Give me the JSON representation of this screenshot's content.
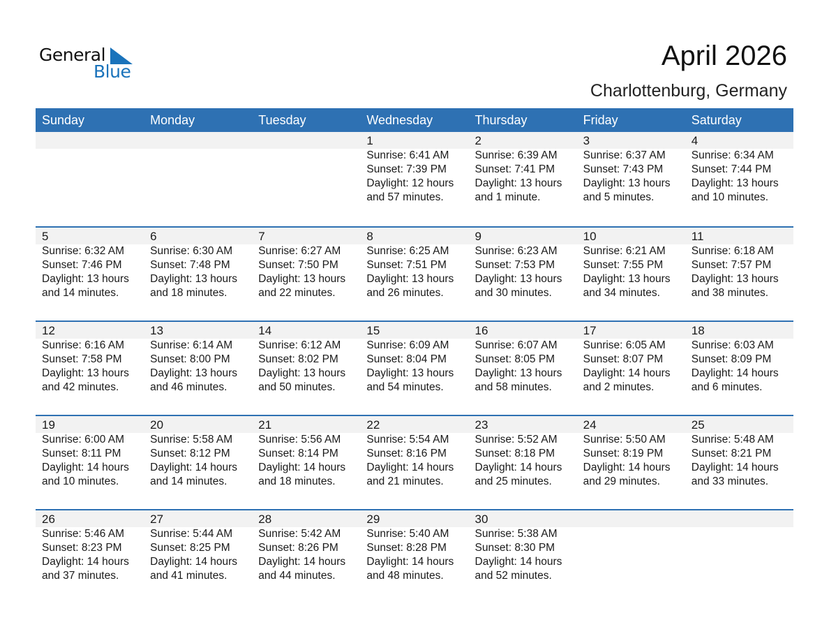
{
  "logo": {
    "text_general": "General",
    "text_blue": "Blue"
  },
  "title": "April 2026",
  "location": "Charlottenburg, Germany",
  "days": [
    "Sunday",
    "Monday",
    "Tuesday",
    "Wednesday",
    "Thursday",
    "Friday",
    "Saturday"
  ],
  "weeks": [
    [
      null,
      null,
      null,
      {
        "day": "1",
        "sunrise": "Sunrise: 6:41 AM",
        "sunset": "Sunset: 7:39 PM",
        "daylight1": "Daylight: 12 hours",
        "daylight2": "and 57 minutes."
      },
      {
        "day": "2",
        "sunrise": "Sunrise: 6:39 AM",
        "sunset": "Sunset: 7:41 PM",
        "daylight1": "Daylight: 13 hours",
        "daylight2": "and 1 minute."
      },
      {
        "day": "3",
        "sunrise": "Sunrise: 6:37 AM",
        "sunset": "Sunset: 7:43 PM",
        "daylight1": "Daylight: 13 hours",
        "daylight2": "and 5 minutes."
      },
      {
        "day": "4",
        "sunrise": "Sunrise: 6:34 AM",
        "sunset": "Sunset: 7:44 PM",
        "daylight1": "Daylight: 13 hours",
        "daylight2": "and 10 minutes."
      }
    ],
    [
      {
        "day": "5",
        "sunrise": "Sunrise: 6:32 AM",
        "sunset": "Sunset: 7:46 PM",
        "daylight1": "Daylight: 13 hours",
        "daylight2": "and 14 minutes."
      },
      {
        "day": "6",
        "sunrise": "Sunrise: 6:30 AM",
        "sunset": "Sunset: 7:48 PM",
        "daylight1": "Daylight: 13 hours",
        "daylight2": "and 18 minutes."
      },
      {
        "day": "7",
        "sunrise": "Sunrise: 6:27 AM",
        "sunset": "Sunset: 7:50 PM",
        "daylight1": "Daylight: 13 hours",
        "daylight2": "and 22 minutes."
      },
      {
        "day": "8",
        "sunrise": "Sunrise: 6:25 AM",
        "sunset": "Sunset: 7:51 PM",
        "daylight1": "Daylight: 13 hours",
        "daylight2": "and 26 minutes."
      },
      {
        "day": "9",
        "sunrise": "Sunrise: 6:23 AM",
        "sunset": "Sunset: 7:53 PM",
        "daylight1": "Daylight: 13 hours",
        "daylight2": "and 30 minutes."
      },
      {
        "day": "10",
        "sunrise": "Sunrise: 6:21 AM",
        "sunset": "Sunset: 7:55 PM",
        "daylight1": "Daylight: 13 hours",
        "daylight2": "and 34 minutes."
      },
      {
        "day": "11",
        "sunrise": "Sunrise: 6:18 AM",
        "sunset": "Sunset: 7:57 PM",
        "daylight1": "Daylight: 13 hours",
        "daylight2": "and 38 minutes."
      }
    ],
    [
      {
        "day": "12",
        "sunrise": "Sunrise: 6:16 AM",
        "sunset": "Sunset: 7:58 PM",
        "daylight1": "Daylight: 13 hours",
        "daylight2": "and 42 minutes."
      },
      {
        "day": "13",
        "sunrise": "Sunrise: 6:14 AM",
        "sunset": "Sunset: 8:00 PM",
        "daylight1": "Daylight: 13 hours",
        "daylight2": "and 46 minutes."
      },
      {
        "day": "14",
        "sunrise": "Sunrise: 6:12 AM",
        "sunset": "Sunset: 8:02 PM",
        "daylight1": "Daylight: 13 hours",
        "daylight2": "and 50 minutes."
      },
      {
        "day": "15",
        "sunrise": "Sunrise: 6:09 AM",
        "sunset": "Sunset: 8:04 PM",
        "daylight1": "Daylight: 13 hours",
        "daylight2": "and 54 minutes."
      },
      {
        "day": "16",
        "sunrise": "Sunrise: 6:07 AM",
        "sunset": "Sunset: 8:05 PM",
        "daylight1": "Daylight: 13 hours",
        "daylight2": "and 58 minutes."
      },
      {
        "day": "17",
        "sunrise": "Sunrise: 6:05 AM",
        "sunset": "Sunset: 8:07 PM",
        "daylight1": "Daylight: 14 hours",
        "daylight2": "and 2 minutes."
      },
      {
        "day": "18",
        "sunrise": "Sunrise: 6:03 AM",
        "sunset": "Sunset: 8:09 PM",
        "daylight1": "Daylight: 14 hours",
        "daylight2": "and 6 minutes."
      }
    ],
    [
      {
        "day": "19",
        "sunrise": "Sunrise: 6:00 AM",
        "sunset": "Sunset: 8:11 PM",
        "daylight1": "Daylight: 14 hours",
        "daylight2": "and 10 minutes."
      },
      {
        "day": "20",
        "sunrise": "Sunrise: 5:58 AM",
        "sunset": "Sunset: 8:12 PM",
        "daylight1": "Daylight: 14 hours",
        "daylight2": "and 14 minutes."
      },
      {
        "day": "21",
        "sunrise": "Sunrise: 5:56 AM",
        "sunset": "Sunset: 8:14 PM",
        "daylight1": "Daylight: 14 hours",
        "daylight2": "and 18 minutes."
      },
      {
        "day": "22",
        "sunrise": "Sunrise: 5:54 AM",
        "sunset": "Sunset: 8:16 PM",
        "daylight1": "Daylight: 14 hours",
        "daylight2": "and 21 minutes."
      },
      {
        "day": "23",
        "sunrise": "Sunrise: 5:52 AM",
        "sunset": "Sunset: 8:18 PM",
        "daylight1": "Daylight: 14 hours",
        "daylight2": "and 25 minutes."
      },
      {
        "day": "24",
        "sunrise": "Sunrise: 5:50 AM",
        "sunset": "Sunset: 8:19 PM",
        "daylight1": "Daylight: 14 hours",
        "daylight2": "and 29 minutes."
      },
      {
        "day": "25",
        "sunrise": "Sunrise: 5:48 AM",
        "sunset": "Sunset: 8:21 PM",
        "daylight1": "Daylight: 14 hours",
        "daylight2": "and 33 minutes."
      }
    ],
    [
      {
        "day": "26",
        "sunrise": "Sunrise: 5:46 AM",
        "sunset": "Sunset: 8:23 PM",
        "daylight1": "Daylight: 14 hours",
        "daylight2": "and 37 minutes."
      },
      {
        "day": "27",
        "sunrise": "Sunrise: 5:44 AM",
        "sunset": "Sunset: 8:25 PM",
        "daylight1": "Daylight: 14 hours",
        "daylight2": "and 41 minutes."
      },
      {
        "day": "28",
        "sunrise": "Sunrise: 5:42 AM",
        "sunset": "Sunset: 8:26 PM",
        "daylight1": "Daylight: 14 hours",
        "daylight2": "and 44 minutes."
      },
      {
        "day": "29",
        "sunrise": "Sunrise: 5:40 AM",
        "sunset": "Sunset: 8:28 PM",
        "daylight1": "Daylight: 14 hours",
        "daylight2": "and 48 minutes."
      },
      {
        "day": "30",
        "sunrise": "Sunrise: 5:38 AM",
        "sunset": "Sunset: 8:30 PM",
        "daylight1": "Daylight: 14 hours",
        "daylight2": "and 52 minutes."
      },
      null,
      null
    ]
  ],
  "colors": {
    "header": "#2e71b3",
    "band": "#f2f2f2",
    "logo_blue": "#1a73bb"
  }
}
